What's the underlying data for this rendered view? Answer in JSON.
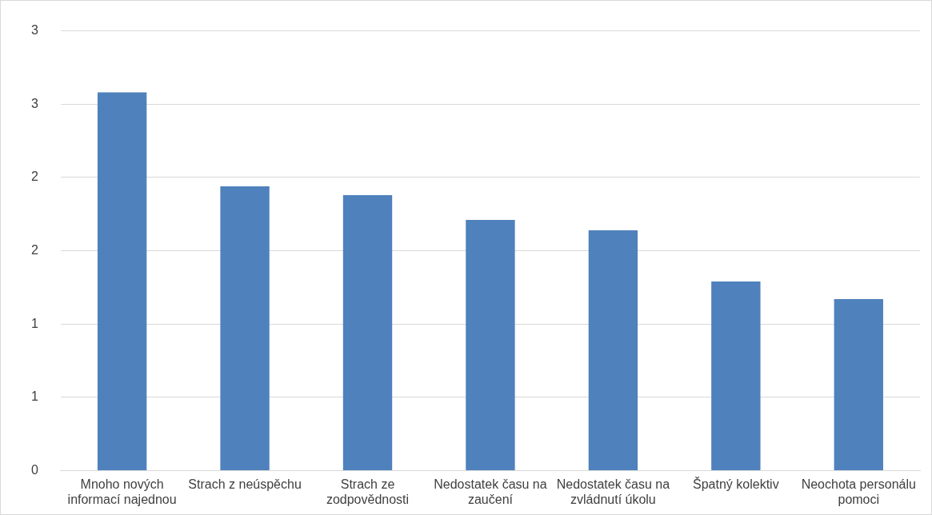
{
  "chart_data": {
    "type": "bar",
    "categories": [
      "Mnoho nových informací najednou",
      "Strach z neúspěchu",
      "Strach ze zodpovědnosti",
      "Nedostatek času na zaučení",
      "Nedostatek času na zvládnutí úkolu",
      "Špatný kolektiv",
      "Neochota personálu pomoci"
    ],
    "values": [
      2.58,
      1.94,
      1.88,
      1.71,
      1.64,
      1.29,
      1.17
    ],
    "color": "#4f81bd",
    "ylim": [
      0,
      3
    ],
    "yticks": [
      0,
      {
        "value": 0.5,
        "label": "1"
      },
      1,
      {
        "value": 1.5,
        "label": "2"
      },
      2,
      {
        "value": 2.5,
        "label": "3"
      },
      3
    ],
    "grid": "y",
    "legend": false
  }
}
